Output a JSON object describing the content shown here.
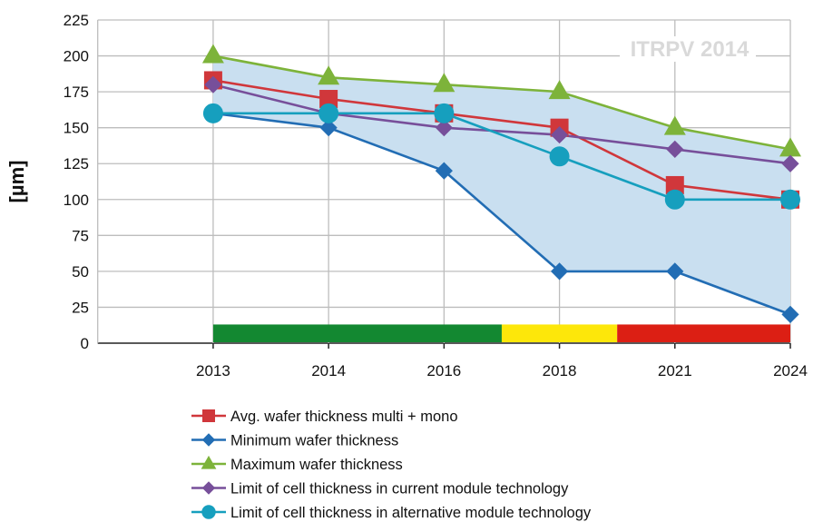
{
  "chart_data": {
    "type": "line",
    "title": "",
    "watermark": "ITRPV 2014",
    "ylabel": "[µm]",
    "xlabel": "",
    "categories": [
      "2013",
      "2014",
      "2016",
      "2018",
      "2021",
      "2024"
    ],
    "ylim": [
      0,
      225
    ],
    "yticks": [
      0,
      25,
      50,
      75,
      100,
      125,
      150,
      175,
      200,
      225
    ],
    "grid": true,
    "legend_placement": "bottom",
    "shaded_range": {
      "between": [
        "Maximum wafer thickness",
        "Minimum wafer thickness"
      ],
      "color": "#c9dff0"
    },
    "series": [
      {
        "name": "Avg. wafer thickness multi + mono",
        "color": "#d0373b",
        "marker": "square",
        "values": [
          183,
          170,
          160,
          150,
          110,
          100
        ]
      },
      {
        "name": "Minimum wafer thickness",
        "color": "#226db4",
        "marker": "diamond",
        "values": [
          160,
          150,
          120,
          50,
          50,
          20
        ]
      },
      {
        "name": "Maximum wafer thickness",
        "color": "#7db33a",
        "marker": "triangle",
        "values": [
          200,
          185,
          180,
          175,
          150,
          135
        ]
      },
      {
        "name": "Limit of cell thickness in current module technology",
        "color": "#774f9a",
        "marker": "diamond",
        "values": [
          180,
          160,
          150,
          145,
          135,
          125
        ]
      },
      {
        "name": "Limit of cell thickness in alternative module technology",
        "color": "#169fbe",
        "marker": "circle",
        "values": [
          160,
          160,
          160,
          130,
          100,
          100
        ]
      }
    ],
    "status_bar": [
      {
        "from": 0,
        "to": 2.5,
        "color": "#138831"
      },
      {
        "from": 2.5,
        "to": 3.5,
        "color": "#fde70a"
      },
      {
        "from": 3.5,
        "to": 5,
        "color": "#dc1f14"
      }
    ],
    "status_bar_top_value": 13
  }
}
